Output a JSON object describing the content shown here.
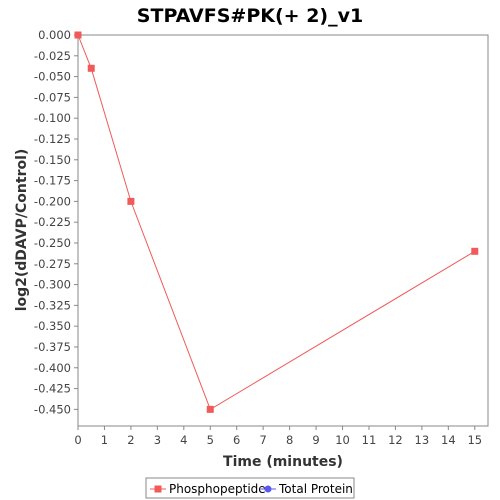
{
  "chart_data": {
    "type": "line",
    "title": "STPAVFS#PK(+ 2)_v1",
    "xlabel": "Time (minutes)",
    "ylabel": "log2(dDAVP/Control)",
    "xlim": [
      0,
      15.5
    ],
    "ylim": [
      -0.47,
      0.0
    ],
    "x_ticks": [
      0,
      1,
      2,
      3,
      4,
      5,
      6,
      7,
      8,
      9,
      10,
      11,
      12,
      13,
      14,
      15
    ],
    "y_ticks": [
      0.0,
      -0.025,
      -0.05,
      -0.075,
      -0.1,
      -0.125,
      -0.15,
      -0.175,
      -0.2,
      -0.225,
      -0.25,
      -0.275,
      -0.3,
      -0.325,
      -0.35,
      -0.375,
      -0.4,
      -0.425,
      -0.45
    ],
    "y_tick_labels": [
      "0.000",
      "-0.025",
      "-0.050",
      "-0.075",
      "-0.100",
      "-0.125",
      "-0.150",
      "-0.175",
      "-0.200",
      "-0.225",
      "-0.250",
      "-0.275",
      "-0.300",
      "-0.325",
      "-0.350",
      "-0.375",
      "-0.400",
      "-0.425",
      "-0.450"
    ],
    "grid": false,
    "legend_position": "bottom",
    "series": [
      {
        "name": "Phosphopeptide",
        "color": "#f05a5a",
        "marker": "square",
        "x": [
          0,
          0.5,
          2,
          5,
          15
        ],
        "y": [
          0.0,
          -0.04,
          -0.2,
          -0.45,
          -0.26
        ]
      },
      {
        "name": "Total Protein",
        "color": "#5a5af0",
        "marker": "circle",
        "x": [],
        "y": []
      }
    ]
  }
}
